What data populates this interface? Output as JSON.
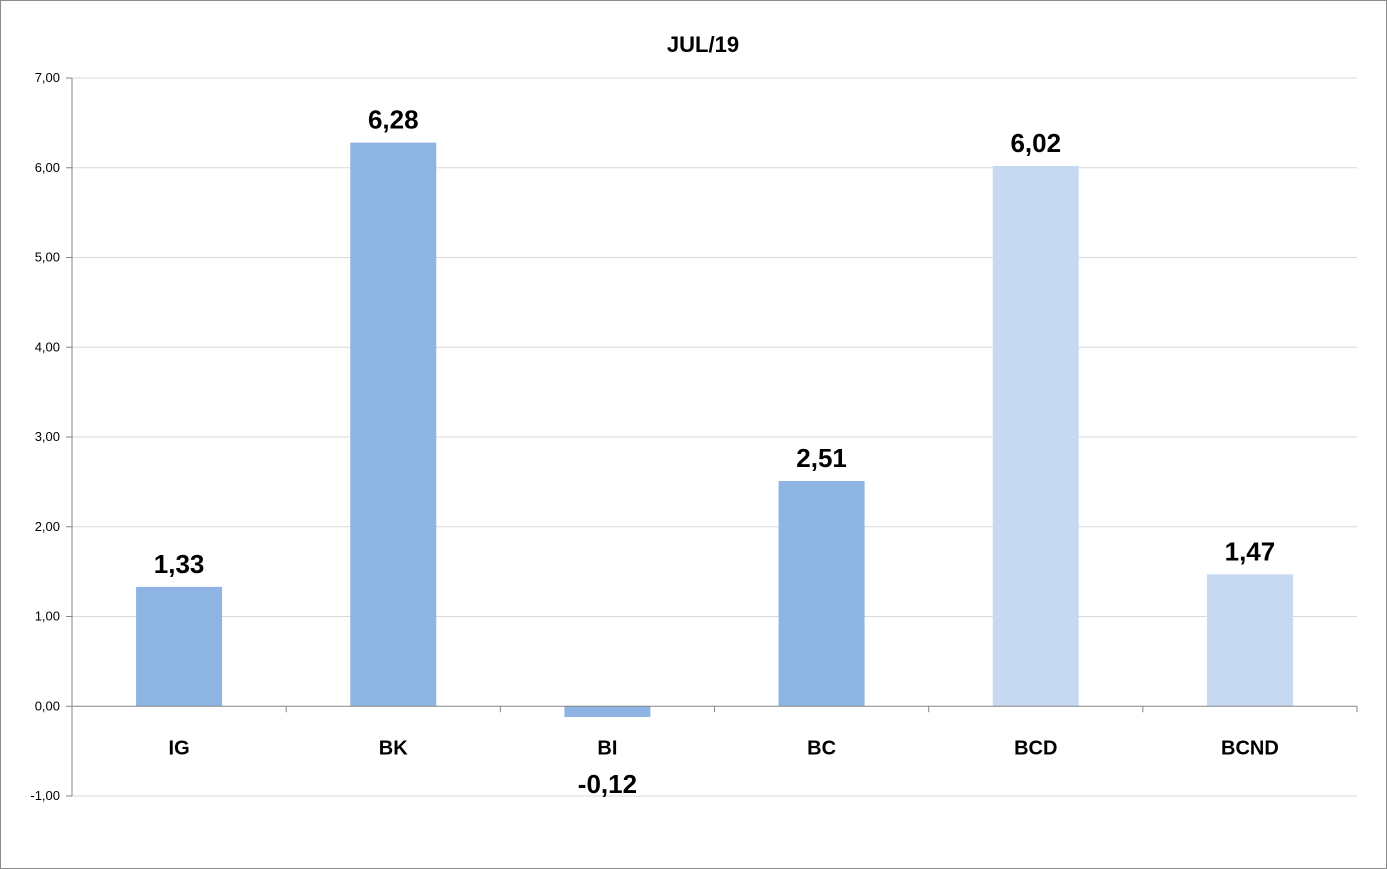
{
  "chart_data": {
    "type": "bar",
    "title": "JUL/19",
    "categories": [
      "IG",
      "BK",
      "BI",
      "BC",
      "BCD",
      "BCND"
    ],
    "values": [
      1.33,
      6.28,
      -0.12,
      2.51,
      6.02,
      1.47
    ],
    "data_labels": [
      "1,33",
      "6,28",
      "-0,12",
      "2,51",
      "6,02",
      "1,47"
    ],
    "bar_colors": [
      "#8eb4e3",
      "#8eb4e3",
      "#8eb4e3",
      "#8eb4e3",
      "#c6d9f1",
      "#c6d9f1"
    ],
    "ylim": [
      -1,
      7
    ],
    "yticks": [
      -1,
      0,
      1,
      2,
      3,
      4,
      5,
      6,
      7
    ],
    "ytick_labels": [
      "-1,00",
      "0,00",
      "1,00",
      "2,00",
      "3,00",
      "4,00",
      "5,00",
      "6,00",
      "7,00"
    ],
    "grid": true,
    "xlabel": "",
    "ylabel": ""
  }
}
